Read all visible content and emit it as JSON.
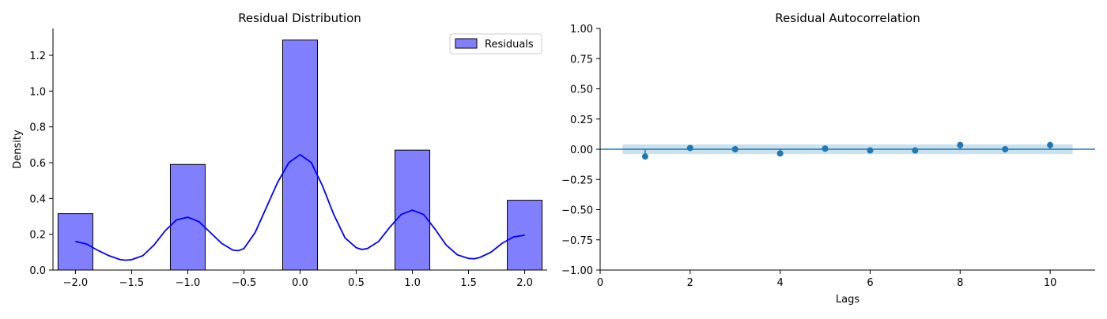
{
  "chart_data": [
    {
      "type": "bar",
      "title": "Residual Distribution",
      "xlabel": "",
      "ylabel": "Density",
      "xlim": [
        -2.2,
        2.2
      ],
      "ylim": [
        0,
        1.35
      ],
      "x_ticks": [
        -2.0,
        -1.5,
        -1.0,
        -0.5,
        0.0,
        0.5,
        1.0,
        1.5,
        2.0
      ],
      "x_tick_labels": [
        "−2.0",
        "−1.5",
        "−1.0",
        "−0.5",
        "0.0",
        "0.5",
        "1.0",
        "1.5",
        "2.0"
      ],
      "y_ticks": [
        0.0,
        0.2,
        0.4,
        0.6,
        0.8,
        1.0,
        1.2
      ],
      "y_tick_labels": [
        "0.0",
        "0.2",
        "0.4",
        "0.6",
        "0.8",
        "1.0",
        "1.2"
      ],
      "bar_width": 0.31,
      "bars": [
        {
          "x": -2.0,
          "value": 0.315
        },
        {
          "x": -1.0,
          "value": 0.59
        },
        {
          "x": 0.0,
          "value": 1.285
        },
        {
          "x": 1.0,
          "value": 0.67
        },
        {
          "x": 2.0,
          "value": 0.39
        }
      ],
      "bar_color": "#8080ff",
      "bar_edge_color": "#000000",
      "kde_color": "#0000ff",
      "kde_points": [
        [
          -2.0,
          0.16
        ],
        [
          -1.9,
          0.145
        ],
        [
          -1.8,
          0.11
        ],
        [
          -1.7,
          0.08
        ],
        [
          -1.6,
          0.058
        ],
        [
          -1.55,
          0.055
        ],
        [
          -1.5,
          0.058
        ],
        [
          -1.4,
          0.08
        ],
        [
          -1.3,
          0.14
        ],
        [
          -1.2,
          0.22
        ],
        [
          -1.1,
          0.28
        ],
        [
          -1.0,
          0.295
        ],
        [
          -0.9,
          0.27
        ],
        [
          -0.8,
          0.21
        ],
        [
          -0.7,
          0.15
        ],
        [
          -0.6,
          0.112
        ],
        [
          -0.55,
          0.108
        ],
        [
          -0.5,
          0.12
        ],
        [
          -0.4,
          0.21
        ],
        [
          -0.3,
          0.35
        ],
        [
          -0.2,
          0.49
        ],
        [
          -0.1,
          0.6
        ],
        [
          0.0,
          0.645
        ],
        [
          0.1,
          0.6
        ],
        [
          0.2,
          0.47
        ],
        [
          0.3,
          0.31
        ],
        [
          0.4,
          0.18
        ],
        [
          0.5,
          0.125
        ],
        [
          0.55,
          0.115
        ],
        [
          0.6,
          0.12
        ],
        [
          0.7,
          0.16
        ],
        [
          0.8,
          0.24
        ],
        [
          0.9,
          0.31
        ],
        [
          1.0,
          0.335
        ],
        [
          1.1,
          0.31
        ],
        [
          1.2,
          0.23
        ],
        [
          1.3,
          0.14
        ],
        [
          1.4,
          0.085
        ],
        [
          1.5,
          0.065
        ],
        [
          1.55,
          0.063
        ],
        [
          1.6,
          0.07
        ],
        [
          1.7,
          0.1
        ],
        [
          1.8,
          0.15
        ],
        [
          1.9,
          0.185
        ],
        [
          2.0,
          0.195
        ]
      ],
      "legend": {
        "label": "Residuals",
        "placement": "top-right"
      },
      "grid": false
    },
    {
      "type": "scatter",
      "subtype": "acf",
      "title": "Residual Autocorrelation",
      "xlabel": "Lags",
      "ylabel": "",
      "xlim": [
        0,
        11
      ],
      "ylim": [
        -1.0,
        1.0
      ],
      "x_ticks": [
        0,
        2,
        4,
        6,
        8,
        10
      ],
      "x_tick_labels": [
        "0",
        "2",
        "4",
        "6",
        "8",
        "10"
      ],
      "y_ticks": [
        -1.0,
        -0.75,
        -0.5,
        -0.25,
        0.0,
        0.25,
        0.5,
        0.75,
        1.0
      ],
      "y_tick_labels": [
        "−1.00",
        "−0.75",
        "−0.50",
        "−0.25",
        "0.00",
        "0.25",
        "0.50",
        "0.75",
        "1.00"
      ],
      "lags": [
        1,
        2,
        3,
        4,
        5,
        6,
        7,
        8,
        9,
        10
      ],
      "values": [
        -0.06,
        0.01,
        0.0,
        -0.035,
        0.005,
        -0.01,
        -0.01,
        0.035,
        0.0,
        0.035
      ],
      "confidence_band": {
        "x_range": [
          0.5,
          10.5
        ],
        "half_width": 0.04
      },
      "marker_color": "#1f77b4",
      "band_color": "#a6cde2",
      "grid": false
    }
  ]
}
